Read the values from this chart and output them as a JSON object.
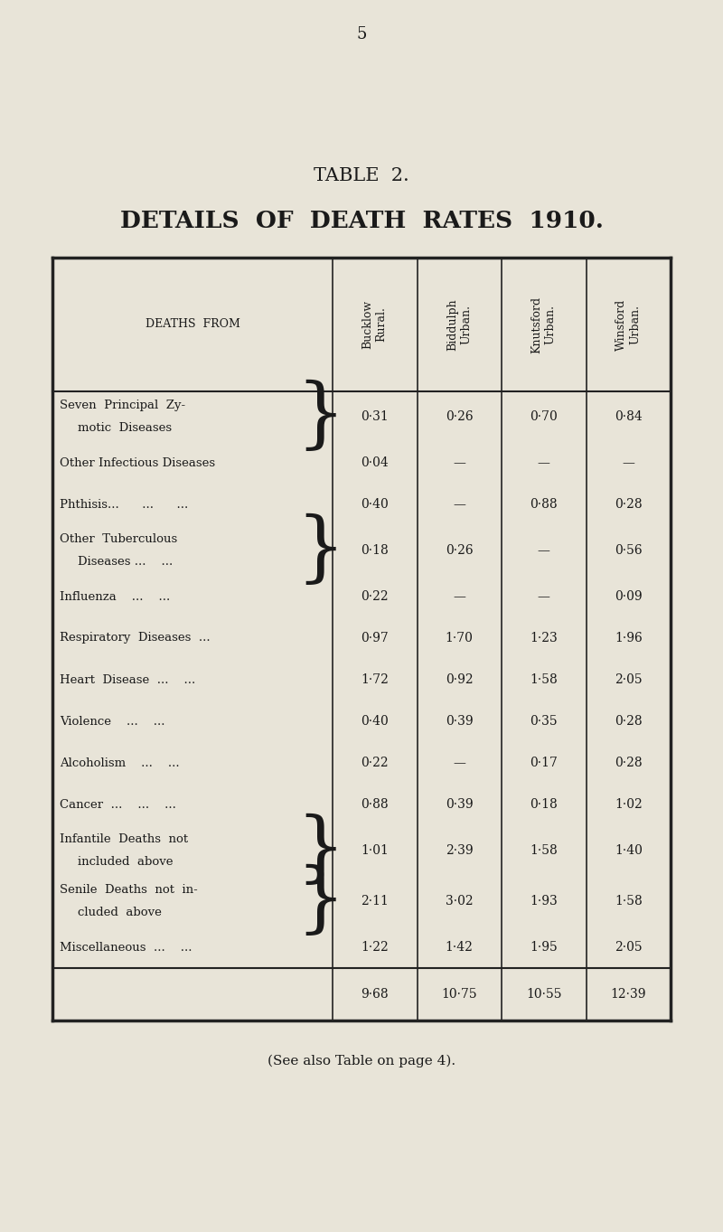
{
  "page_number": "5",
  "title1": "TABLE  2.",
  "title2": "DETAILS  OF  DEATH  RATES  1910.",
  "header_label": "DEATHS  FROM",
  "columns": [
    "Bucklow\nRural.",
    "Biddulph\nUrban.",
    "Knutsford\nUrban.",
    "Winsford\nUrban."
  ],
  "rows": [
    {
      "label_lines": [
        "Seven  Principal  Zy-",
        "motic  Diseases"
      ],
      "label_bracket": "right_brace",
      "values": [
        "0·31",
        "0·26",
        "0·70",
        "0·84"
      ]
    },
    {
      "label_lines": [
        "Other Infectious Diseases"
      ],
      "label_bracket": null,
      "values": [
        "0·04",
        "—",
        "—",
        "—"
      ]
    },
    {
      "label_lines": [
        "Phthisis...      ...      ..."
      ],
      "label_bracket": null,
      "values": [
        "0·40",
        "—",
        "0·88",
        "0·28"
      ]
    },
    {
      "label_lines": [
        "Other  Tuberculous",
        "Diseases ...    ..."
      ],
      "label_bracket": "right_brace",
      "values": [
        "0·18",
        "0·26",
        "—",
        "0·56"
      ]
    },
    {
      "label_lines": [
        "Influenza    ...    ..."
      ],
      "label_bracket": null,
      "values": [
        "0·22",
        "—",
        "—",
        "0·09"
      ]
    },
    {
      "label_lines": [
        "Respiratory  Diseases  ..."
      ],
      "label_bracket": null,
      "values": [
        "0·97",
        "1·70",
        "1·23",
        "1·96"
      ]
    },
    {
      "label_lines": [
        "Heart  Disease  ...    ..."
      ],
      "label_bracket": null,
      "values": [
        "1·72",
        "0·92",
        "1·58",
        "2·05"
      ]
    },
    {
      "label_lines": [
        "Violence    ...    ..."
      ],
      "label_bracket": null,
      "values": [
        "0·40",
        "0·39",
        "0·35",
        "0·28"
      ]
    },
    {
      "label_lines": [
        "Alcoholism    ...    ..."
      ],
      "label_bracket": null,
      "values": [
        "0·22",
        "—",
        "0·17",
        "0·28"
      ]
    },
    {
      "label_lines": [
        "Cancer  ...    ...    ..."
      ],
      "label_bracket": null,
      "values": [
        "0·88",
        "0·39",
        "0·18",
        "1·02"
      ]
    },
    {
      "label_lines": [
        "Infantile  Deaths  not",
        "included  above"
      ],
      "label_bracket": "right_brace",
      "values": [
        "1·01",
        "2·39",
        "1·58",
        "1·40"
      ]
    },
    {
      "label_lines": [
        "Senile  Deaths  not  in-",
        "cluded  above"
      ],
      "label_bracket": "right_brace",
      "values": [
        "2·11",
        "3·02",
        "1·93",
        "1·58"
      ]
    },
    {
      "label_lines": [
        "Miscellaneous  ...    ..."
      ],
      "label_bracket": null,
      "values": [
        "1·22",
        "1·42",
        "1·95",
        "2·05"
      ]
    }
  ],
  "totals": [
    "9·68",
    "10·75",
    "10·55",
    "12·39"
  ],
  "footnote": "(See also Table on page 4).",
  "bg_color": "#e8e4d8",
  "text_color": "#1a1a1a",
  "table_border_color": "#222222"
}
